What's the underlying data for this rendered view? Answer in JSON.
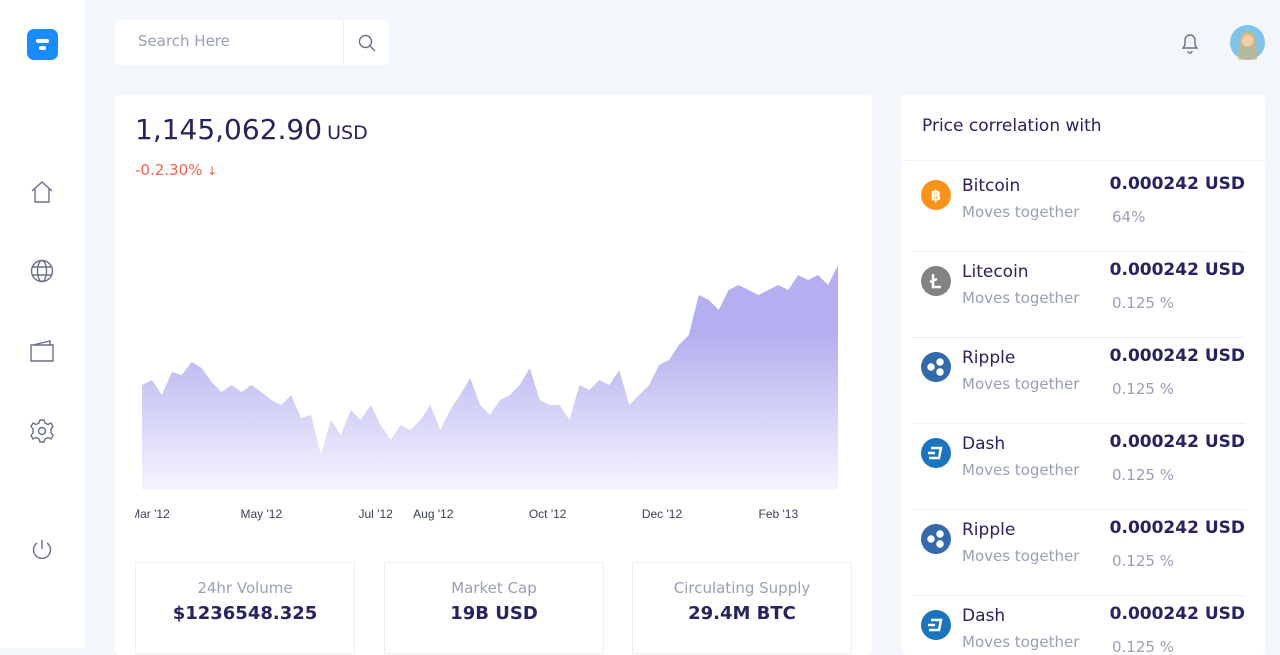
{
  "search": {
    "placeholder": "Search Here"
  },
  "price": {
    "amount": "1,145,062.90",
    "currency": "USD",
    "change": "-0.2.30%"
  },
  "chart_data": {
    "type": "area",
    "color": "#b3aff0",
    "values": [
      105,
      110,
      95,
      118,
      115,
      128,
      122,
      108,
      98,
      105,
      98,
      105,
      98,
      90,
      85,
      95,
      72,
      75,
      35,
      70,
      55,
      80,
      70,
      85,
      65,
      50,
      65,
      60,
      70,
      85,
      60,
      80,
      95,
      112,
      85,
      75,
      90,
      95,
      105,
      122,
      90,
      85,
      85,
      70,
      105,
      100,
      110,
      105,
      120,
      85,
      95,
      105,
      125,
      130,
      145,
      155,
      195,
      190,
      180,
      200,
      205,
      200,
      195,
      200,
      205,
      200,
      215,
      210,
      215,
      205,
      225
    ],
    "xlim": [
      0,
      70
    ],
    "ylim": [
      0,
      250
    ],
    "xticks": [
      {
        "value": 0.8,
        "label": "Mar '12"
      },
      {
        "value": 12,
        "label": "May '12"
      },
      {
        "value": 23.5,
        "label": "Jul '12"
      },
      {
        "value": 29.3,
        "label": "Aug '12"
      },
      {
        "value": 40.8,
        "label": "Oct '12"
      },
      {
        "value": 52.3,
        "label": "Dec '12"
      },
      {
        "value": 64,
        "label": "Feb '13"
      }
    ]
  },
  "stats": [
    {
      "label": "24hr Volume",
      "value": "$1236548.325"
    },
    {
      "label": "Market Cap",
      "value": "19B USD"
    },
    {
      "label": "Circulating Supply",
      "value": "29.4M BTC"
    }
  ],
  "correlation": {
    "title": "Price correlation with",
    "items": [
      {
        "name": "Bitcoin",
        "note": "Moves together",
        "price": "0.000242 USD",
        "percent": "64%",
        "color": "#f7931a"
      },
      {
        "name": "Litecoin",
        "note": "Moves together",
        "price": "0.000242 USD",
        "percent": "0.125 %",
        "color": "#838383"
      },
      {
        "name": "Ripple",
        "note": "Moves together",
        "price": "0.000242 USD",
        "percent": "0.125 %",
        "color": "#346aa9"
      },
      {
        "name": "Dash",
        "note": "Moves together",
        "price": "0.000242 USD",
        "percent": "0.125 %",
        "color": "#1c75bc"
      },
      {
        "name": "Ripple",
        "note": "Moves together",
        "price": "0.000242 USD",
        "percent": "0.125 %",
        "color": "#346aa9"
      },
      {
        "name": "Dash",
        "note": "Moves together",
        "price": "0.000242 USD",
        "percent": "0.125 %",
        "color": "#1c75bc"
      }
    ]
  }
}
